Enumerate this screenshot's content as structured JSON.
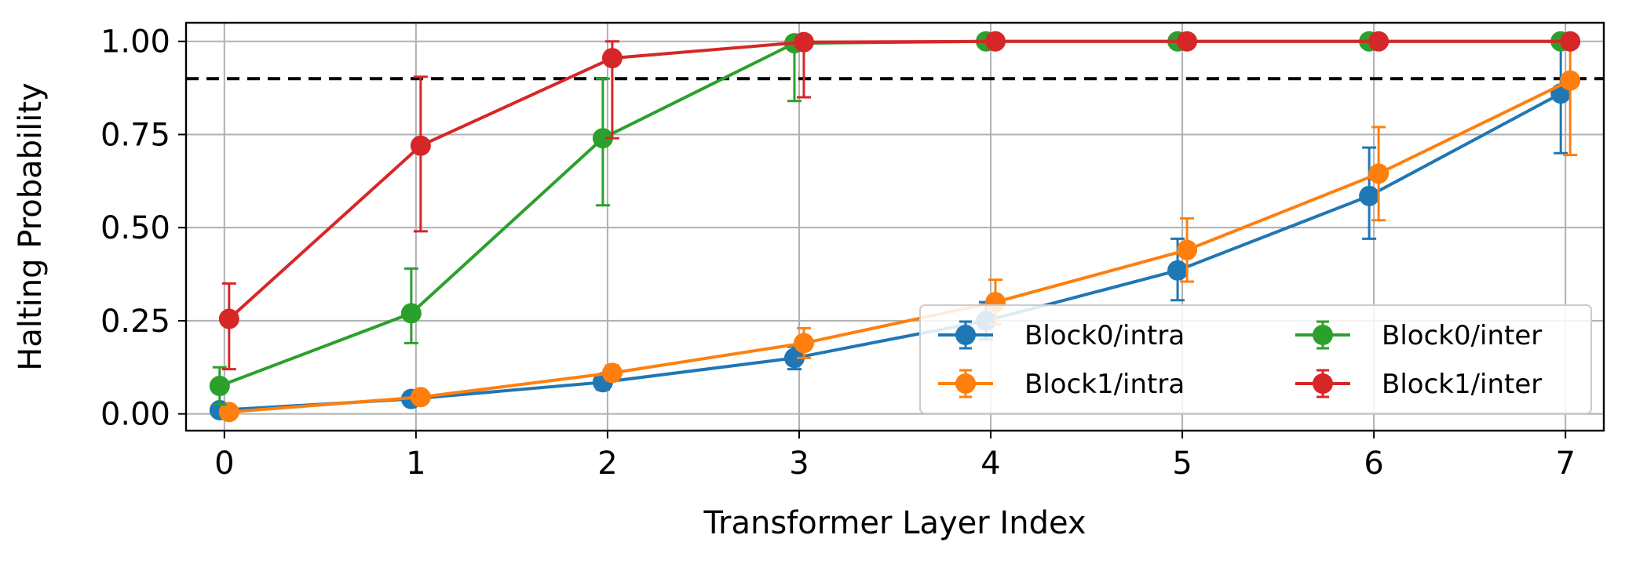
{
  "chart_data": {
    "type": "line",
    "xlabel": "Transformer Layer Index",
    "ylabel": "Halting Probability",
    "x": [
      0,
      1,
      2,
      3,
      4,
      5,
      6,
      7
    ],
    "xlim": [
      -0.2,
      7.2
    ],
    "ylim": [
      -0.045,
      1.05
    ],
    "xticks": [
      "0",
      "1",
      "2",
      "3",
      "4",
      "5",
      "6",
      "7"
    ],
    "yticks": [
      "0.00",
      "0.25",
      "0.50",
      "0.75",
      "1.00"
    ],
    "grid": true,
    "threshold": {
      "value": 0.9,
      "style": "dashed",
      "color": "#000000"
    },
    "legend": {
      "position": "lower-right",
      "columns": 2
    },
    "series": [
      {
        "name": "Block0/intra",
        "color": "#1f77b4",
        "values": [
          0.01,
          0.04,
          0.085,
          0.15,
          0.25,
          0.385,
          0.585,
          0.86
        ],
        "err_low": [
          0.0,
          0.01,
          0.02,
          0.03,
          0.05,
          0.08,
          0.115,
          0.16
        ],
        "err_high": [
          0.0,
          0.01,
          0.02,
          0.03,
          0.05,
          0.085,
          0.13,
          0.14
        ]
      },
      {
        "name": "Block1/intra",
        "color": "#ff7f0e",
        "values": [
          0.005,
          0.045,
          0.11,
          0.19,
          0.3,
          0.44,
          0.645,
          0.895
        ],
        "err_low": [
          0.0,
          0.01,
          0.02,
          0.04,
          0.06,
          0.085,
          0.125,
          0.2
        ],
        "err_high": [
          0.0,
          0.01,
          0.02,
          0.04,
          0.06,
          0.085,
          0.125,
          0.1
        ]
      },
      {
        "name": "Block0/inter",
        "color": "#2ca02c",
        "values": [
          0.075,
          0.27,
          0.74,
          0.995,
          1.0,
          1.0,
          1.0,
          1.0
        ],
        "err_low": [
          0.05,
          0.08,
          0.18,
          0.155,
          0.0,
          0.0,
          0.0,
          0.0
        ],
        "err_high": [
          0.05,
          0.12,
          0.16,
          0.005,
          0.0,
          0.0,
          0.0,
          0.0
        ]
      },
      {
        "name": "Block1/inter",
        "color": "#d62728",
        "values": [
          0.255,
          0.72,
          0.955,
          0.998,
          1.0,
          1.0,
          1.0,
          1.0
        ],
        "err_low": [
          0.135,
          0.23,
          0.215,
          0.148,
          0.0,
          0.0,
          0.0,
          0.0
        ],
        "err_high": [
          0.095,
          0.185,
          0.045,
          0.002,
          0.0,
          0.0,
          0.0,
          0.0
        ]
      }
    ]
  }
}
